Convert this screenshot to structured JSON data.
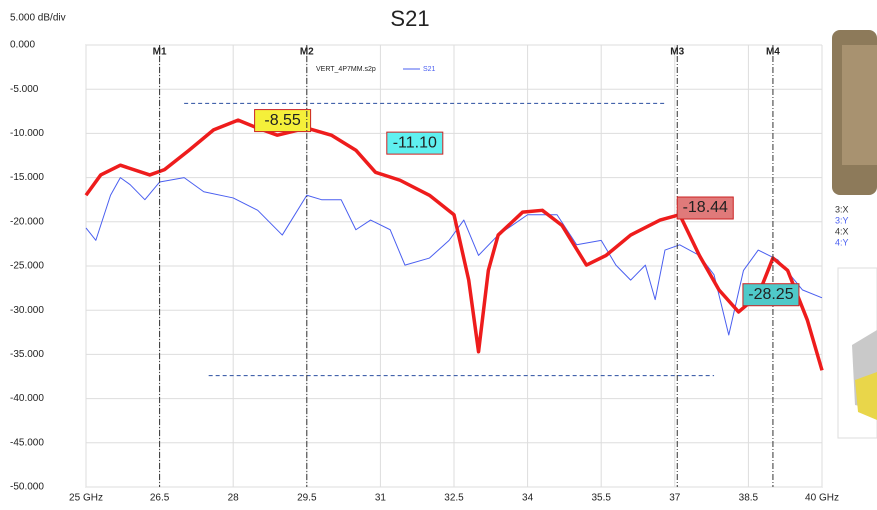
{
  "chart_data": {
    "type": "line",
    "title": "S21",
    "scale_label": "5.000 dB/div",
    "legend_file": "VERT_4P7MM.s2p",
    "xlim": [
      25,
      40
    ],
    "xticks": [
      {
        "value": 25,
        "label": "25 GHz"
      },
      26.5,
      28,
      29.5,
      31,
      32.5,
      34,
      35.5,
      37,
      38.5,
      {
        "value": 40,
        "label": "40 GHz"
      }
    ],
    "ylim": [
      -50,
      0
    ],
    "yticks": [
      {
        "value": 0,
        "label": "0.000"
      },
      {
        "value": -5,
        "label": "-5.000"
      },
      {
        "value": -10,
        "label": "-10.000"
      },
      {
        "value": -15,
        "label": "-15.000"
      },
      {
        "value": -20,
        "label": "-20.000"
      },
      {
        "value": -25,
        "label": "-25.000"
      },
      {
        "value": -30,
        "label": "-30.000"
      },
      {
        "value": -35,
        "label": "-35.000"
      },
      {
        "value": -40,
        "label": "-40.000"
      },
      {
        "value": -45,
        "label": "-45.000"
      },
      {
        "value": -50,
        "label": "-50.000"
      }
    ],
    "grid": true,
    "series": [
      {
        "color": "#ee1c1c",
        "width": 3.5,
        "x": [
          25,
          25.3,
          25.7,
          26.3,
          26.6,
          27.1,
          27.6,
          28.1,
          28.5,
          28.9,
          29.5,
          30,
          30.5,
          30.9,
          31.4,
          32.0,
          32.5,
          32.8,
          33.0,
          33.2,
          33.4,
          33.9,
          34.3,
          34.7,
          35.2,
          35.6,
          36.1,
          36.7,
          37.1,
          37.5,
          37.9,
          38.3,
          38.7,
          39.0,
          39.3,
          39.7,
          40
        ],
        "values": [
          -17,
          -14.7,
          -13.6,
          -14.7,
          -14.1,
          -11.9,
          -9.6,
          -8.5,
          -9.4,
          -10.2,
          -9.4,
          -10.2,
          -11.9,
          -14.4,
          -15.3,
          -17,
          -19.2,
          -26.6,
          -34.7,
          -25.5,
          -21.5,
          -18.9,
          -18.7,
          -20.4,
          -24.9,
          -23.8,
          -21.5,
          -19.8,
          -19.2,
          -23.8,
          -27.7,
          -30.2,
          -28.3,
          -24.1,
          -25.5,
          -31.1,
          -36.8
        ]
      },
      {
        "name": "S21",
        "color": "#4a5ff0",
        "width": 1,
        "x": [
          25,
          25.2,
          25.5,
          25.7,
          25.9,
          26.2,
          26.5,
          27.0,
          27.4,
          28.0,
          28.5,
          29.0,
          29.5,
          29.8,
          30.2,
          30.5,
          30.8,
          31.2,
          31.5,
          32.0,
          32.4,
          32.7,
          33.0,
          33.4,
          34.0,
          34.6,
          35.0,
          35.5,
          35.8,
          36.1,
          36.4,
          36.6,
          36.8,
          37.1,
          37.5,
          37.8,
          38.1,
          38.4,
          38.7,
          39.1,
          39.6,
          40
        ],
        "values": [
          -20.7,
          -22.1,
          -17,
          -15,
          -15.8,
          -17.5,
          -15.5,
          -15,
          -16.6,
          -17.3,
          -18.7,
          -21.5,
          -17,
          -17.5,
          -17.5,
          -20.9,
          -19.8,
          -20.9,
          -24.9,
          -24.1,
          -22.1,
          -19.8,
          -23.8,
          -21.5,
          -19.2,
          -19.2,
          -22.6,
          -22.1,
          -24.9,
          -26.6,
          -24.9,
          -28.8,
          -23.2,
          -22.6,
          -23.8,
          -26,
          -32.8,
          -25.5,
          -23.2,
          -24.3,
          -27.7,
          -28.6
        ]
      }
    ],
    "markers": [
      {
        "label": "M1",
        "x": 26.5,
        "value": -8.55,
        "value_label": "-8.55",
        "color": "#f5f03a"
      },
      {
        "label": "M2",
        "x": 29.5,
        "value": -11.1,
        "value_label": "-11.10",
        "color": "#5ff0f0"
      },
      {
        "label": "M3",
        "x": 37.05,
        "value": -18.44,
        "value_label": "-18.44",
        "color": "#e07a7a"
      },
      {
        "label": "M4",
        "x": 39.0,
        "value": -28.25,
        "value_label": "-28.25",
        "color": "#4fc9c9"
      }
    ],
    "reference_lines": [
      {
        "value": -6.6,
        "x": [
          27.0,
          36.8
        ]
      },
      {
        "value": -37.4,
        "x": [
          27.5,
          37.8
        ]
      }
    ],
    "side_labels": [
      "3:X",
      "3:Y",
      "4:X",
      "4:Y"
    ]
  }
}
